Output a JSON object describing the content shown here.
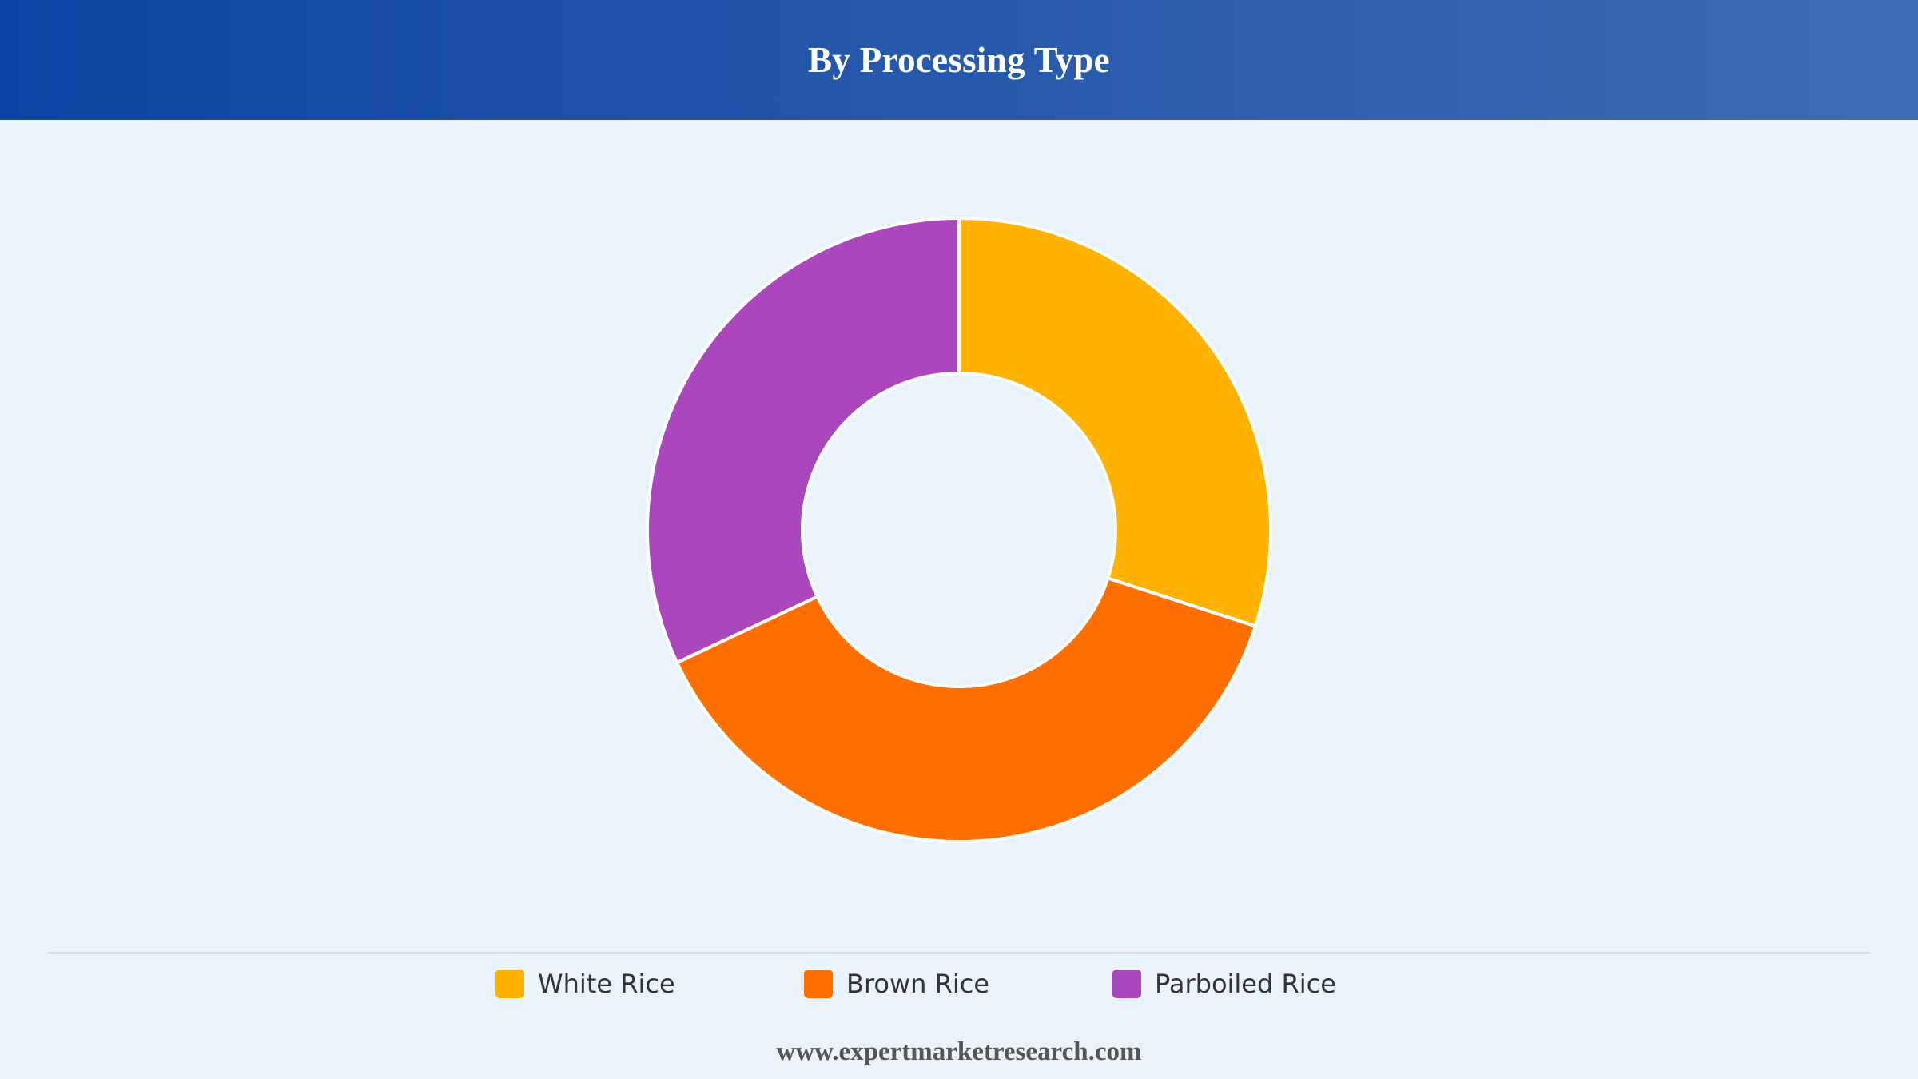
{
  "header": {
    "title": "By Processing Type"
  },
  "chart_data": {
    "type": "pie",
    "variant": "donut",
    "title": "By Processing Type",
    "categories": [
      "White Rice",
      "Brown Rice",
      "Parboiled Rice"
    ],
    "values": [
      30,
      38,
      32
    ],
    "unit": "%",
    "colors": [
      "#ffb300",
      "#ff6f00",
      "#ab47bc"
    ],
    "legend_position": "bottom"
  },
  "legend": {
    "items": [
      {
        "label": "White Rice",
        "color": "#ffb300"
      },
      {
        "label": "Brown Rice",
        "color": "#ff6f00"
      },
      {
        "label": "Parboiled Rice",
        "color": "#ab47bc"
      }
    ]
  },
  "footer": {
    "website": "www.expertmarketresearch.com"
  }
}
